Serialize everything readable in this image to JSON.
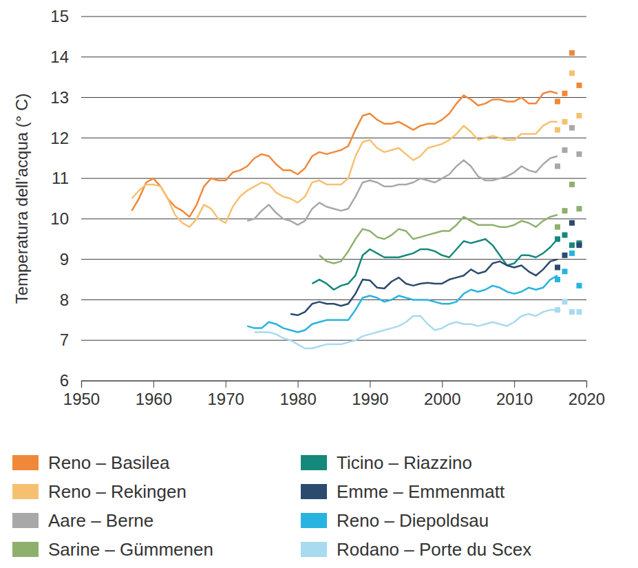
{
  "chart_data": {
    "type": "line",
    "y_label": "Temperatura dell’acqua (° C)",
    "xlim": [
      1950,
      2020
    ],
    "xticks": [
      1950,
      1960,
      1970,
      1980,
      1990,
      2000,
      2010,
      2020
    ],
    "ylim": [
      6,
      15
    ],
    "yticks": [
      6,
      7,
      8,
      9,
      10,
      11,
      12,
      13,
      14,
      15
    ],
    "grid": true,
    "series": [
      {
        "name": "Reno – Basilea",
        "type": "line",
        "color": "#f0883a",
        "x": [
          1957,
          1958,
          1959,
          1960,
          1961,
          1962,
          1963,
          1964,
          1965,
          1966,
          1967,
          1968,
          1969,
          1970,
          1971,
          1972,
          1973,
          1974,
          1975,
          1976,
          1977,
          1978,
          1979,
          1980,
          1981,
          1982,
          1983,
          1984,
          1985,
          1986,
          1987,
          1988,
          1989,
          1990,
          1991,
          1992,
          1993,
          1994,
          1995,
          1996,
          1997,
          1998,
          1999,
          2000,
          2001,
          2002,
          2003,
          2004,
          2005,
          2006,
          2007,
          2008,
          2009,
          2010,
          2011,
          2012,
          2013,
          2014,
          2015,
          2016
        ],
        "values": [
          10.2,
          10.5,
          10.9,
          11.0,
          10.8,
          10.5,
          10.3,
          10.2,
          10.05,
          10.35,
          10.8,
          11.0,
          10.95,
          10.95,
          11.15,
          11.2,
          11.3,
          11.5,
          11.6,
          11.55,
          11.35,
          11.2,
          11.2,
          11.1,
          11.25,
          11.55,
          11.65,
          11.6,
          11.65,
          11.7,
          11.8,
          12.2,
          12.55,
          12.6,
          12.45,
          12.35,
          12.35,
          12.4,
          12.3,
          12.2,
          12.3,
          12.35,
          12.35,
          12.45,
          12.6,
          12.85,
          13.05,
          12.95,
          12.8,
          12.85,
          12.95,
          12.95,
          12.9,
          12.9,
          13.0,
          12.85,
          12.85,
          13.1,
          13.15,
          13.1
        ]
      },
      {
        "name": "Reno – Rekingen",
        "type": "line",
        "color": "#f5c170",
        "x": [
          1957,
          1958,
          1959,
          1960,
          1961,
          1962,
          1963,
          1964,
          1965,
          1966,
          1967,
          1968,
          1969,
          1970,
          1971,
          1972,
          1973,
          1974,
          1975,
          1976,
          1977,
          1978,
          1979,
          1980,
          1981,
          1982,
          1983,
          1984,
          1985,
          1986,
          1987,
          1988,
          1989,
          1990,
          1991,
          1992,
          1993,
          1994,
          1995,
          1996,
          1997,
          1998,
          1999,
          2000,
          2001,
          2002,
          2003,
          2004,
          2005,
          2006,
          2007,
          2008,
          2009,
          2010,
          2011,
          2012,
          2013,
          2014,
          2015,
          2016
        ],
        "values": [
          10.5,
          10.7,
          10.85,
          10.85,
          10.8,
          10.5,
          10.1,
          9.9,
          9.8,
          10.0,
          10.35,
          10.25,
          10.0,
          9.9,
          10.3,
          10.55,
          10.7,
          10.8,
          10.9,
          10.85,
          10.65,
          10.55,
          10.5,
          10.4,
          10.55,
          10.9,
          10.95,
          10.85,
          10.85,
          10.85,
          11.0,
          11.55,
          11.9,
          11.95,
          11.75,
          11.65,
          11.7,
          11.75,
          11.6,
          11.45,
          11.55,
          11.75,
          11.8,
          11.85,
          11.95,
          12.1,
          12.3,
          12.15,
          11.95,
          12.0,
          12.05,
          12.0,
          11.95,
          11.95,
          12.1,
          12.1,
          12.1,
          12.3,
          12.4,
          12.4
        ]
      },
      {
        "name": "Aare – Berne",
        "type": "line",
        "color": "#a8a8a8",
        "x": [
          1973,
          1974,
          1975,
          1976,
          1977,
          1978,
          1979,
          1980,
          1981,
          1982,
          1983,
          1984,
          1985,
          1986,
          1987,
          1988,
          1989,
          1990,
          1991,
          1992,
          1993,
          1994,
          1995,
          1996,
          1997,
          1998,
          1999,
          2000,
          2001,
          2002,
          2003,
          2004,
          2005,
          2006,
          2007,
          2008,
          2009,
          2010,
          2011,
          2012,
          2013,
          2014,
          2015,
          2016
        ],
        "values": [
          9.95,
          10.0,
          10.2,
          10.35,
          10.15,
          10.0,
          9.95,
          9.85,
          9.95,
          10.25,
          10.4,
          10.3,
          10.25,
          10.2,
          10.25,
          10.55,
          10.9,
          10.95,
          10.9,
          10.8,
          10.8,
          10.85,
          10.85,
          10.9,
          11.0,
          10.95,
          10.9,
          11.0,
          11.1,
          11.3,
          11.45,
          11.3,
          11.05,
          10.95,
          10.95,
          11.0,
          11.05,
          11.15,
          11.3,
          11.2,
          11.15,
          11.35,
          11.5,
          11.55
        ]
      },
      {
        "name": "Sarine – Gümmenen",
        "type": "line",
        "color": "#8fb06c",
        "x": [
          1983,
          1984,
          1985,
          1986,
          1987,
          1988,
          1989,
          1990,
          1991,
          1992,
          1993,
          1994,
          1995,
          1996,
          1997,
          1998,
          1999,
          2000,
          2001,
          2002,
          2003,
          2004,
          2005,
          2006,
          2007,
          2008,
          2009,
          2010,
          2011,
          2012,
          2013,
          2014,
          2015,
          2016
        ],
        "values": [
          9.1,
          8.95,
          8.9,
          8.95,
          9.2,
          9.5,
          9.75,
          9.7,
          9.55,
          9.5,
          9.6,
          9.75,
          9.7,
          9.5,
          9.55,
          9.6,
          9.65,
          9.7,
          9.7,
          9.85,
          10.05,
          9.95,
          9.85,
          9.85,
          9.85,
          9.8,
          9.8,
          9.85,
          9.95,
          9.9,
          9.8,
          9.95,
          10.05,
          10.1
        ]
      },
      {
        "name": "Ticino – Riazzino",
        "type": "line",
        "color": "#14897b",
        "x": [
          1982,
          1983,
          1984,
          1985,
          1986,
          1987,
          1988,
          1989,
          1990,
          1991,
          1992,
          1993,
          1994,
          1995,
          1996,
          1997,
          1998,
          1999,
          2000,
          2001,
          2002,
          2003,
          2004,
          2005,
          2006,
          2007,
          2008,
          2009,
          2010,
          2011,
          2012,
          2013,
          2014,
          2015,
          2016
        ],
        "values": [
          8.4,
          8.5,
          8.4,
          8.25,
          8.35,
          8.4,
          8.6,
          9.1,
          9.25,
          9.15,
          9.05,
          9.05,
          9.05,
          9.1,
          9.15,
          9.25,
          9.25,
          9.2,
          9.1,
          9.05,
          9.25,
          9.45,
          9.4,
          9.45,
          9.5,
          9.35,
          9.1,
          8.85,
          8.9,
          9.1,
          9.1,
          9.05,
          9.15,
          9.3,
          9.5
        ]
      },
      {
        "name": "Emme – Emmenmatt",
        "type": "line",
        "color": "#2c4a6e",
        "x": [
          1979,
          1980,
          1981,
          1982,
          1983,
          1984,
          1985,
          1986,
          1987,
          1988,
          1989,
          1990,
          1991,
          1992,
          1993,
          1994,
          1995,
          1996,
          1997,
          1998,
          1999,
          2000,
          2001,
          2002,
          2003,
          2004,
          2005,
          2006,
          2007,
          2008,
          2009,
          2010,
          2011,
          2012,
          2013,
          2014,
          2015,
          2016
        ],
        "values": [
          7.65,
          7.62,
          7.7,
          7.9,
          7.95,
          7.9,
          7.9,
          7.85,
          7.9,
          8.15,
          8.5,
          8.48,
          8.3,
          8.28,
          8.45,
          8.55,
          8.4,
          8.35,
          8.4,
          8.42,
          8.4,
          8.4,
          8.5,
          8.55,
          8.6,
          8.75,
          8.65,
          8.7,
          8.9,
          8.95,
          8.85,
          8.8,
          8.85,
          8.7,
          8.6,
          8.75,
          8.95,
          9.0
        ]
      },
      {
        "name": "Reno – Diepoldsau",
        "type": "line",
        "color": "#29b3e0",
        "x": [
          1973,
          1974,
          1975,
          1976,
          1977,
          1978,
          1979,
          1980,
          1981,
          1982,
          1983,
          1984,
          1985,
          1986,
          1987,
          1988,
          1989,
          1990,
          1991,
          1992,
          1993,
          1994,
          1995,
          1996,
          1997,
          1998,
          1999,
          2000,
          2001,
          2002,
          2003,
          2004,
          2005,
          2006,
          2007,
          2008,
          2009,
          2010,
          2011,
          2012,
          2013,
          2014,
          2015,
          2016
        ],
        "values": [
          7.35,
          7.3,
          7.3,
          7.45,
          7.4,
          7.3,
          7.25,
          7.2,
          7.25,
          7.4,
          7.45,
          7.5,
          7.5,
          7.5,
          7.5,
          7.75,
          8.05,
          8.1,
          8.05,
          7.95,
          8.0,
          8.1,
          8.05,
          8.0,
          8.0,
          8.0,
          7.95,
          7.9,
          7.9,
          7.95,
          8.15,
          8.25,
          8.2,
          8.25,
          8.35,
          8.3,
          8.2,
          8.15,
          8.2,
          8.3,
          8.25,
          8.3,
          8.5,
          8.6
        ]
      },
      {
        "name": "Rodano – Porte du Scex",
        "type": "line",
        "color": "#a8daf0",
        "x": [
          1974,
          1975,
          1976,
          1977,
          1978,
          1979,
          1980,
          1981,
          1982,
          1983,
          1984,
          1985,
          1986,
          1987,
          1988,
          1989,
          1990,
          1991,
          1992,
          1993,
          1994,
          1995,
          1996,
          1997,
          1998,
          1999,
          2000,
          2001,
          2002,
          2003,
          2004,
          2005,
          2006,
          2007,
          2008,
          2009,
          2010,
          2011,
          2012,
          2013,
          2014,
          2015,
          2016
        ],
        "values": [
          7.2,
          7.2,
          7.2,
          7.15,
          7.05,
          7.0,
          6.9,
          6.8,
          6.8,
          6.85,
          6.9,
          6.9,
          6.9,
          6.95,
          7.0,
          7.1,
          7.15,
          7.2,
          7.25,
          7.3,
          7.35,
          7.45,
          7.6,
          7.6,
          7.4,
          7.25,
          7.3,
          7.4,
          7.45,
          7.4,
          7.4,
          7.35,
          7.4,
          7.45,
          7.4,
          7.35,
          7.45,
          7.6,
          7.65,
          7.6,
          7.7,
          7.75,
          7.75
        ]
      },
      {
        "type": "scatter",
        "marker": "square",
        "color": "#f0883a",
        "x": [
          2016,
          2017,
          2018,
          2019
        ],
        "values": [
          12.9,
          13.1,
          14.1,
          13.3
        ]
      },
      {
        "type": "scatter",
        "marker": "square",
        "color": "#f5c170",
        "x": [
          2016,
          2017,
          2018,
          2019
        ],
        "values": [
          12.2,
          12.4,
          13.6,
          12.55
        ]
      },
      {
        "type": "scatter",
        "marker": "square",
        "color": "#a8a8a8",
        "x": [
          2016,
          2017,
          2018,
          2019
        ],
        "values": [
          11.3,
          11.7,
          12.25,
          11.6
        ]
      },
      {
        "type": "scatter",
        "marker": "square",
        "color": "#8fb06c",
        "x": [
          2016,
          2017,
          2018,
          2019
        ],
        "values": [
          9.8,
          10.2,
          10.85,
          10.25
        ]
      },
      {
        "type": "scatter",
        "marker": "square",
        "color": "#14897b",
        "x": [
          2016,
          2017,
          2018,
          2019
        ],
        "values": [
          9.5,
          9.6,
          9.35,
          9.4
        ]
      },
      {
        "type": "scatter",
        "marker": "square",
        "color": "#2c4a6e",
        "x": [
          2016,
          2017,
          2018,
          2019
        ],
        "values": [
          8.8,
          9.1,
          9.9,
          9.35
        ]
      },
      {
        "type": "scatter",
        "marker": "square",
        "color": "#29b3e0",
        "x": [
          2016,
          2017,
          2018,
          2019
        ],
        "values": [
          8.5,
          8.7,
          9.15,
          8.35
        ]
      },
      {
        "type": "scatter",
        "marker": "square",
        "color": "#a8daf0",
        "x": [
          2016,
          2017,
          2018,
          2019
        ],
        "values": [
          7.75,
          7.95,
          7.7,
          7.7
        ]
      }
    ]
  }
}
